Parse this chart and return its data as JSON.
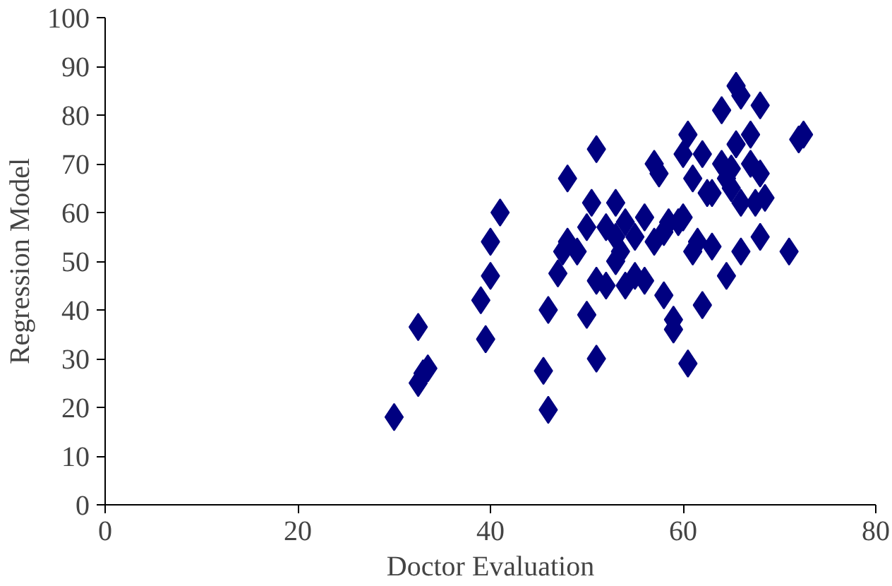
{
  "chart_data": {
    "type": "scatter",
    "xlabel": "Doctor Evaluation",
    "ylabel": "Regression Model",
    "marker": "diamond",
    "grid": false,
    "xlim": [
      0,
      80
    ],
    "xticks": [
      0,
      20,
      40,
      60,
      80
    ],
    "ylim": [
      0,
      100
    ],
    "yticks": [
      0,
      10,
      20,
      30,
      40,
      50,
      60,
      70,
      80,
      90,
      100
    ],
    "series": [
      {
        "color": "#000080",
        "x": [
          30,
          32.5,
          33,
          33.5,
          32.5,
          39,
          40,
          40,
          41,
          39.5,
          45.5,
          46,
          46,
          47,
          47.5,
          48,
          48,
          49,
          50,
          50,
          50.5,
          51,
          51,
          51,
          52,
          52,
          53,
          53,
          53,
          53.5,
          54,
          54,
          55,
          55,
          56,
          56,
          57,
          57,
          57.5,
          58,
          58,
          58.5,
          59,
          59,
          59.5,
          60,
          60,
          60.5,
          60.5,
          61,
          61,
          61.5,
          62,
          62,
          62.5,
          63,
          63,
          64,
          64,
          64.5,
          64.5,
          65,
          65,
          65.5,
          65.5,
          66,
          66,
          66,
          67,
          67,
          67.5,
          68,
          68,
          68,
          68.5,
          71,
          72,
          72.5
        ],
        "values": [
          18,
          25,
          27,
          28,
          36.5,
          42,
          47,
          54,
          60,
          34,
          27.5,
          19.5,
          40,
          47.5,
          52,
          54,
          67,
          52,
          39,
          57,
          62,
          73,
          46,
          30,
          45,
          57,
          50,
          55,
          62,
          52,
          45,
          58,
          47,
          55,
          46,
          59,
          70,
          54,
          68,
          43,
          56,
          58,
          36,
          38,
          58,
          59,
          72,
          76,
          29,
          67,
          52,
          54,
          72,
          41,
          64,
          53,
          64,
          70,
          81,
          67,
          47,
          65,
          69,
          86,
          74,
          84,
          62,
          52,
          76,
          70,
          62,
          68,
          55,
          82,
          63,
          52,
          75,
          76
        ]
      }
    ]
  }
}
